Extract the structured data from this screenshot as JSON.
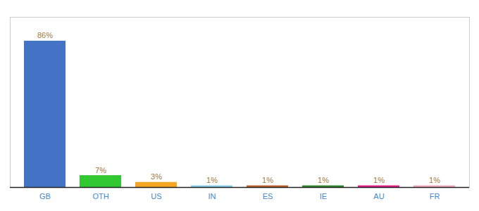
{
  "chart_data": {
    "type": "bar",
    "categories": [
      "GB",
      "OTH",
      "US",
      "IN",
      "ES",
      "IE",
      "AU",
      "FR"
    ],
    "values": [
      86,
      7,
      3,
      1,
      1,
      1,
      1,
      1
    ],
    "value_labels": [
      "86%",
      "7%",
      "3%",
      "1%",
      "1%",
      "1%",
      "1%",
      "1%"
    ],
    "colors": [
      "#4472c4",
      "#32c832",
      "#f5a623",
      "#87ceeb",
      "#c0622b",
      "#2d8b2d",
      "#e91e8c",
      "#f4a7b9"
    ],
    "ylim": [
      0,
      100
    ],
    "data_labels": true,
    "tick_labels": "x",
    "grid": false
  }
}
